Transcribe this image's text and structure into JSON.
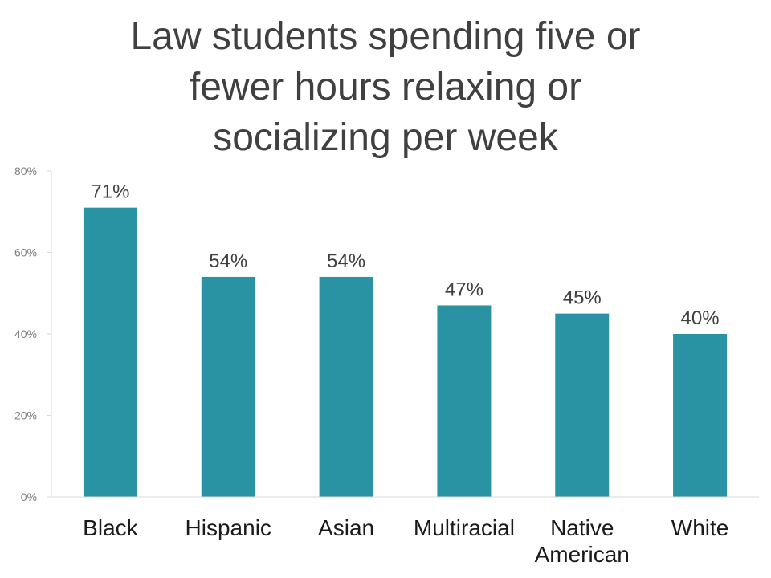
{
  "chart_data": {
    "type": "bar",
    "title_lines": [
      "Law students spending five or",
      "fewer hours relaxing or",
      "socializing per week"
    ],
    "categories": [
      [
        "Black"
      ],
      [
        "Hispanic"
      ],
      [
        "Asian"
      ],
      [
        "Multiracial"
      ],
      [
        "Native",
        "American"
      ],
      [
        "White"
      ]
    ],
    "values": [
      71,
      54,
      54,
      47,
      45,
      40
    ],
    "data_labels": [
      "71%",
      "54%",
      "54%",
      "47%",
      "45%",
      "40%"
    ],
    "y_ticks": [
      0,
      20,
      40,
      60,
      80
    ],
    "y_tick_labels": [
      "0%",
      "20%",
      "40%",
      "60%",
      "80%"
    ],
    "ylim": [
      0,
      80
    ],
    "xlabel": "",
    "ylabel": "",
    "grid": false,
    "legend": "none",
    "bar_color": "#2a93a3",
    "axis_color": "#d9d9d9"
  }
}
